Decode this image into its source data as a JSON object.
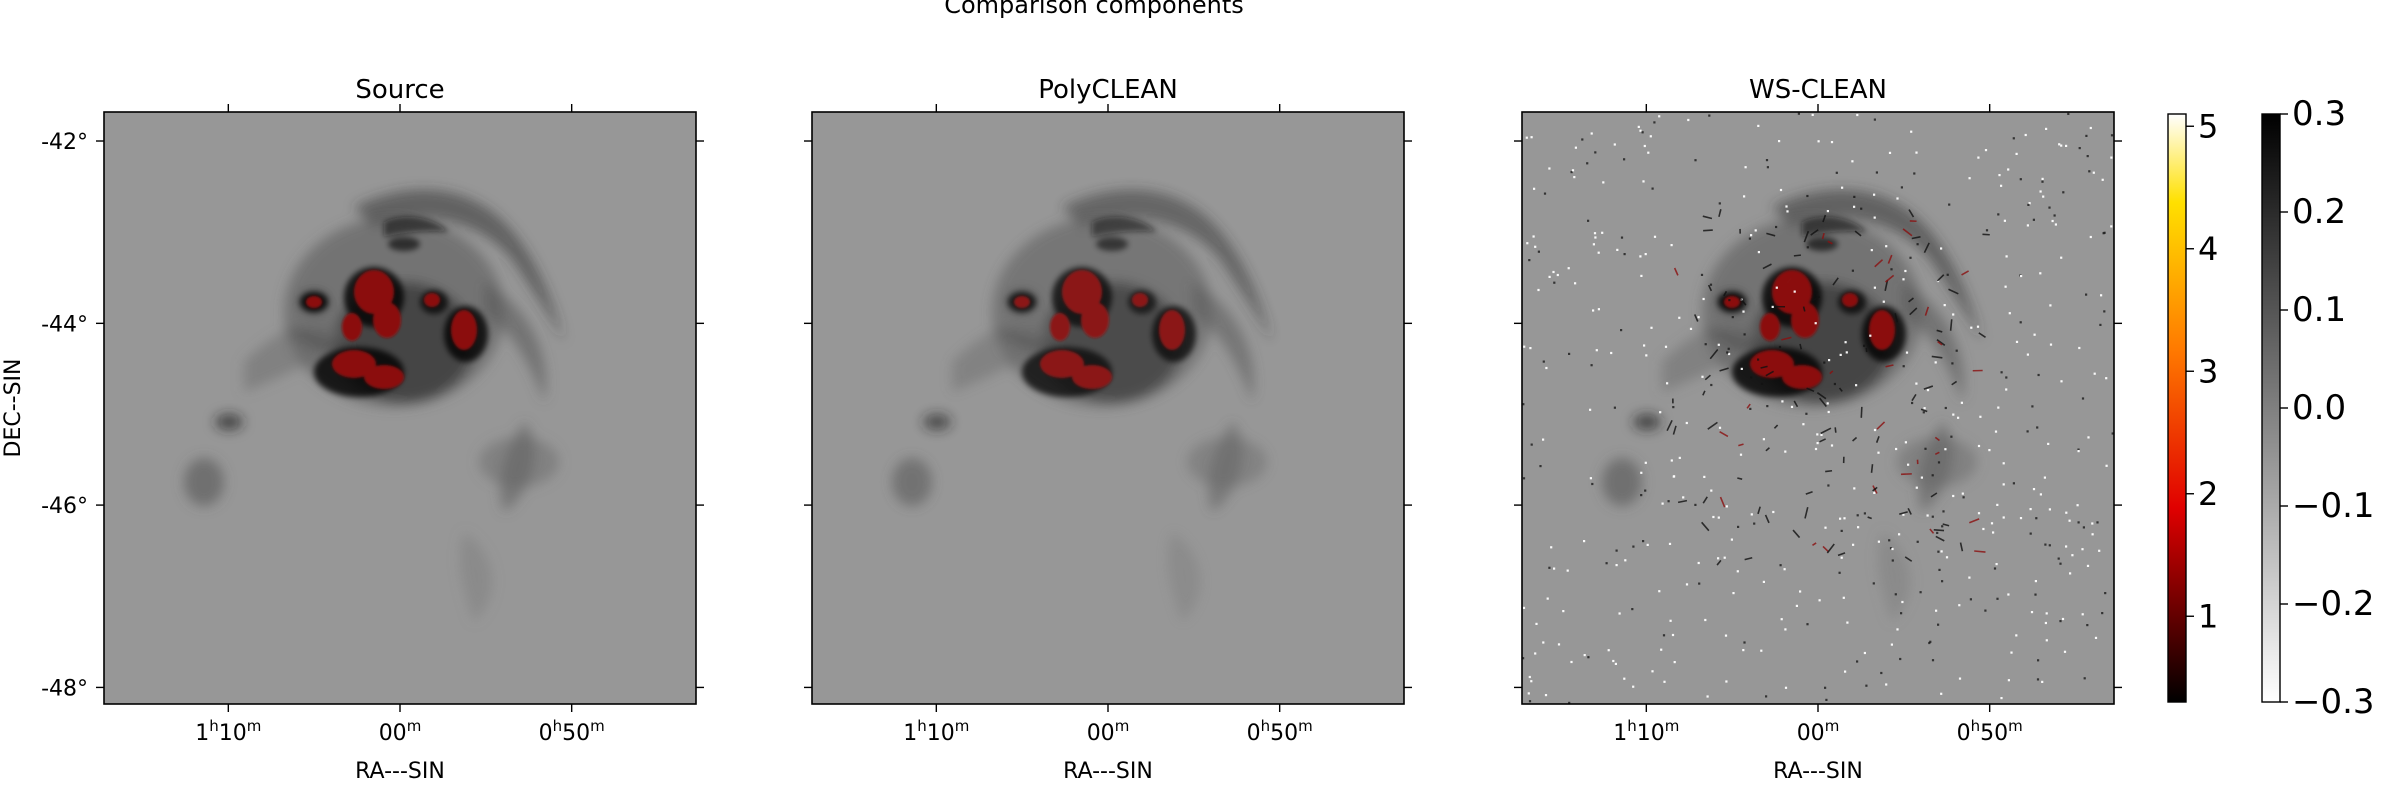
{
  "figure": {
    "suptitle": "Comparison components"
  },
  "chart_data": {
    "type": "heatmap",
    "panels": [
      {
        "title": "Source",
        "xlabel": "RA---SIN",
        "ylabel": "DEC--SIN",
        "show_y_ticklabels": true,
        "show_y_axis_label": true
      },
      {
        "title": "PolyCLEAN",
        "xlabel": "RA---SIN",
        "ylabel": "",
        "show_y_ticklabels": false,
        "show_y_axis_label": false
      },
      {
        "title": "WS-CLEAN",
        "xlabel": "RA---SIN",
        "ylabel": "",
        "show_y_ticklabels": false,
        "show_y_axis_label": false
      }
    ],
    "x_ticks": [
      {
        "h": "1",
        "m": "10"
      },
      {
        "h": "",
        "m": "00"
      },
      {
        "h": "0",
        "m": "50"
      }
    ],
    "y_ticks": [
      "-42°",
      "-44°",
      "-46°",
      "-48°"
    ],
    "y_range_deg": [
      -48.2,
      -41.7
    ],
    "colorbars": [
      {
        "name": "hot colormap",
        "colormap": "afmhot",
        "min": 0.3,
        "max": 5.1,
        "ticks": [
          "1",
          "2",
          "3",
          "4",
          "5"
        ],
        "tick_values": [
          1,
          2,
          3,
          4,
          5
        ]
      },
      {
        "name": "gray colormap",
        "colormap": "gray_r",
        "min": -0.3,
        "max": 0.3,
        "ticks": [
          "−0.3",
          "−0.2",
          "−0.1",
          "0.0",
          "0.1",
          "0.2",
          "0.3"
        ],
        "tick_values": [
          -0.3,
          -0.2,
          -0.1,
          0.0,
          0.1,
          0.2,
          0.3
        ]
      }
    ]
  }
}
